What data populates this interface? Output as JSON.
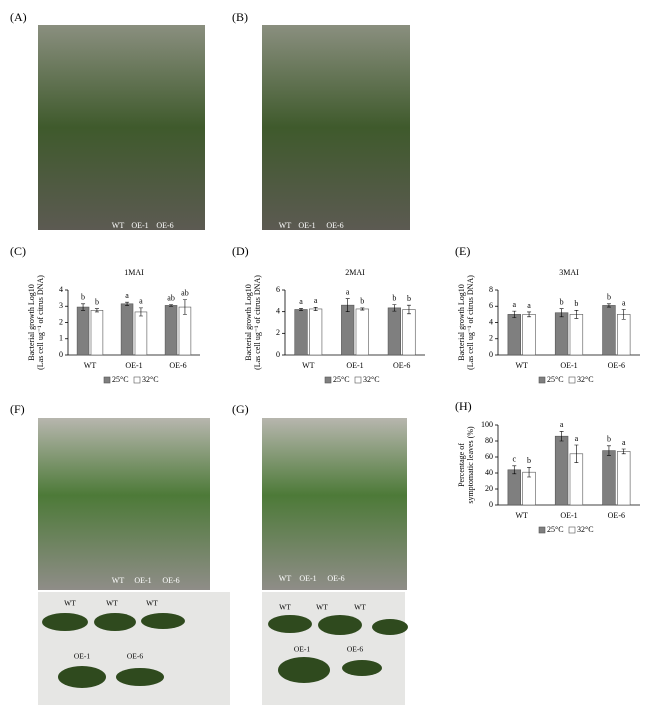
{
  "chart_data": [
    {
      "type": "bar",
      "panel": "(C)",
      "title": "1MAI",
      "y_label": [
        "Bacterial growth Log10",
        "(Las cell ug⁻¹ of citrus DNA)"
      ],
      "categories": [
        "WT",
        "OE-1",
        "OE-6"
      ],
      "ylim": [
        0,
        4
      ],
      "yticks": [
        0,
        1,
        2,
        3,
        4
      ],
      "series": [
        {
          "name": "25°C",
          "color": "#7f7f7f",
          "values": [
            2.95,
            3.15,
            3.05
          ],
          "errors": [
            0.2,
            0.1,
            0.05
          ],
          "letters": [
            "b",
            "a",
            "ab"
          ]
        },
        {
          "name": "32°C",
          "color": "#ffffff",
          "values": [
            2.75,
            2.65,
            2.95
          ],
          "errors": [
            0.1,
            0.25,
            0.45
          ],
          "letters": [
            "b",
            "a",
            "ab"
          ]
        }
      ]
    },
    {
      "type": "bar",
      "panel": "(D)",
      "title": "2MAI",
      "y_label": [
        "Bacterial growth Log10",
        "(Las cell ug⁻¹ of citrus DNA)"
      ],
      "categories": [
        "WT",
        "OE-1",
        "OE-6"
      ],
      "ylim": [
        0,
        6
      ],
      "yticks": [
        0,
        2,
        4,
        6
      ],
      "series": [
        {
          "name": "25°C",
          "color": "#7f7f7f",
          "values": [
            4.2,
            4.6,
            4.35
          ],
          "errors": [
            0.1,
            0.6,
            0.3
          ],
          "letters": [
            "a",
            "a",
            "b"
          ]
        },
        {
          "name": "32°C",
          "color": "#ffffff",
          "values": [
            4.25,
            4.25,
            4.2
          ],
          "errors": [
            0.15,
            0.1,
            0.4
          ],
          "letters": [
            "a",
            "b",
            "b"
          ]
        }
      ]
    },
    {
      "type": "bar",
      "panel": "(E)",
      "title": "3MAI",
      "y_label": [
        "Bacterial growth Log10",
        "(Las cell ug⁻¹ of citrus DNA)"
      ],
      "categories": [
        "WT",
        "OE-1",
        "OE-6"
      ],
      "ylim": [
        0,
        8
      ],
      "yticks": [
        0,
        2,
        4,
        6,
        8
      ],
      "series": [
        {
          "name": "25°C",
          "color": "#7f7f7f",
          "values": [
            5.0,
            5.2,
            6.1
          ],
          "errors": [
            0.4,
            0.5,
            0.2
          ],
          "letters": [
            "a",
            "b",
            "b"
          ]
        },
        {
          "name": "32°C",
          "color": "#ffffff",
          "values": [
            5.0,
            5.0,
            5.0
          ],
          "errors": [
            0.3,
            0.5,
            0.6
          ],
          "letters": [
            "a",
            "b",
            "a"
          ]
        }
      ]
    },
    {
      "type": "bar",
      "panel": "(H)",
      "y_label": [
        "Percentage of",
        "symptomatic leaves (%)"
      ],
      "categories": [
        "WT",
        "OE-1",
        "OE-6"
      ],
      "ylim": [
        0,
        100
      ],
      "yticks": [
        0,
        20,
        40,
        60,
        80,
        100
      ],
      "series": [
        {
          "name": "25°C",
          "color": "#7f7f7f",
          "values": [
            44,
            86,
            68
          ],
          "errors": [
            5,
            6,
            6
          ],
          "letters": [
            "c",
            "a",
            "b"
          ]
        },
        {
          "name": "32°C",
          "color": "#ffffff",
          "values": [
            41,
            64,
            67
          ],
          "errors": [
            6,
            11,
            3
          ],
          "letters": [
            "b",
            "a",
            "a"
          ]
        }
      ]
    }
  ],
  "photos": [
    {
      "panel": "(A)",
      "tags": [
        "WT",
        "OE-1",
        "OE-6"
      ]
    },
    {
      "panel": "(B)",
      "tags": [
        "WT",
        "OE-1",
        "OE-6"
      ]
    },
    {
      "panel": "(F)",
      "tags": [
        "WT",
        "OE-1",
        "OE-6"
      ],
      "leaf_tags": [
        "WT",
        "WT",
        "WT",
        "OE-1",
        "OE-6"
      ]
    },
    {
      "panel": "(G)",
      "tags": [
        "WT",
        "OE-1",
        "OE-6"
      ],
      "leaf_tags": [
        "WT",
        "WT",
        "WT",
        "OE-1",
        "OE-6"
      ]
    }
  ]
}
